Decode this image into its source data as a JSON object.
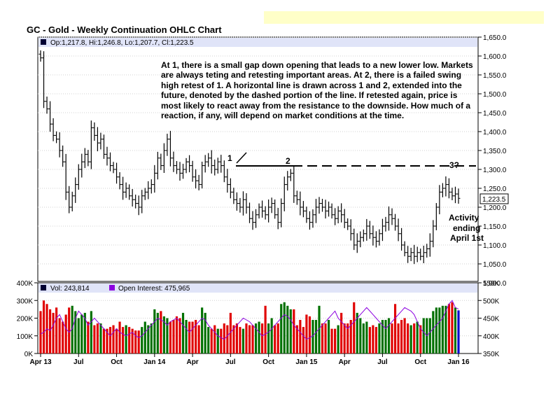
{
  "title": "GC - Gold - Weekly Continuation OHLC Chart",
  "ohlc_legend": "Op:1,217.8, Hi:1,246.8, Lo:1,207.7, Cl:1,223.5",
  "price_label": "1,223.5",
  "annotation": "At 1, there is a small gap down opening that leads to a new lower low.  Markets are always teting and retesting important areas.  At 2, there is a failed swing high retest of 1.  A horizontal line is drawn across 1 and 2, extended into the future, denoted by the dashed portion of the line.  If retested again, price is most likely to react away from the resistance to the downside.  How much of a reaction, if any, will depend on market conditions at the time.",
  "markers": {
    "m1": "1",
    "m2": "2",
    "m3": "3?"
  },
  "side_note": [
    "Activity",
    "ending",
    "April 1st"
  ],
  "volume_legend": "Vol: 243,814",
  "oi_legend": "Open Interest: 475,965",
  "colors": {
    "up": "#007000",
    "down": "#e00000",
    "oi": "#8c00e0",
    "legend_bg": "#e0e4f8",
    "note_bg": "#ffffc8",
    "last_volume": "#0000cc"
  },
  "chart_data": [
    {
      "type": "ohlc",
      "ylim": [
        1000,
        1650
      ],
      "price_ticks": [
        "1,650.0",
        "1,600.0",
        "1,550.0",
        "1,500.0",
        "1,450.0",
        "1,400.0",
        "1,350.0",
        "1,300.0",
        "1,250.0",
        "1,200.0",
        "1,150.0",
        "1,100.0",
        "1,050.0",
        "1,000.0"
      ],
      "x_ticks": [
        "Apr 13",
        "Jul",
        "Oct",
        "Jan 14",
        "Apr",
        "Jul",
        "Oct",
        "Jan 15",
        "Apr",
        "Jul",
        "Oct",
        "Jan 16"
      ],
      "resistance_level": 1310,
      "series": [
        {
          "name": "close",
          "values": [
            1595,
            1480,
            1460,
            1420,
            1390,
            1380,
            1350,
            1320,
            1240,
            1200,
            1230,
            1260,
            1300,
            1320,
            1340,
            1320,
            1410,
            1390,
            1370,
            1380,
            1340,
            1330,
            1310,
            1300,
            1280,
            1260,
            1240,
            1250,
            1230,
            1220,
            1210,
            1200,
            1230,
            1240,
            1250,
            1260,
            1290,
            1330,
            1310,
            1350,
            1380,
            1330,
            1310,
            1300,
            1290,
            1300,
            1320,
            1310,
            1280,
            1270,
            1260,
            1310,
            1320,
            1330,
            1310,
            1300,
            1320,
            1310,
            1280,
            1260,
            1240,
            1220,
            1210,
            1200,
            1220,
            1200,
            1170,
            1160,
            1180,
            1200,
            1190,
            1180,
            1200,
            1210,
            1180,
            1160,
            1210,
            1260,
            1280,
            1290,
            1230,
            1220,
            1200,
            1190,
            1170,
            1160,
            1180,
            1200,
            1210,
            1200,
            1190,
            1200,
            1180,
            1170,
            1190,
            1180,
            1160,
            1150,
            1130,
            1100,
            1110,
            1120,
            1130,
            1150,
            1130,
            1120,
            1110,
            1130,
            1150,
            1160,
            1180,
            1170,
            1150,
            1130,
            1100,
            1080,
            1070,
            1080,
            1070,
            1080,
            1070,
            1080,
            1090,
            1110,
            1150,
            1200,
            1240,
            1250,
            1260,
            1240,
            1230,
            1235,
            1223.5
          ]
        },
        {
          "name": "Vol",
          "values": [
            240,
            300,
            280,
            250,
            230,
            260,
            200,
            180,
            220,
            260,
            270,
            240,
            200,
            220,
            230,
            180,
            240,
            160,
            170,
            170,
            140,
            140,
            150,
            160,
            140,
            180,
            150,
            160,
            150,
            140,
            130,
            130,
            150,
            180,
            160,
            170,
            250,
            230,
            240,
            210,
            200,
            180,
            190,
            210,
            200,
            230,
            190,
            180,
            180,
            190,
            160,
            260,
            230,
            150,
            140,
            160,
            140,
            140,
            170,
            160,
            230,
            160,
            170,
            150,
            140,
            170,
            160,
            160,
            170,
            180,
            170,
            270,
            170,
            200,
            160,
            170,
            280,
            290,
            270,
            250,
            250,
            160,
            190,
            150,
            220,
            210,
            190,
            190,
            270,
            170,
            170,
            190,
            140,
            140,
            160,
            230,
            170,
            170,
            190,
            290,
            230,
            200,
            170,
            180,
            150,
            160,
            150,
            170,
            190,
            190,
            200,
            170,
            280,
            170,
            190,
            200,
            170,
            160,
            170,
            180,
            160,
            200,
            200,
            200,
            240,
            260,
            260,
            270,
            270,
            280,
            290,
            260,
            244
          ]
        },
        {
          "name": "Open Interest",
          "values": [
            405,
            410,
            420,
            415,
            430,
            450,
            460,
            440,
            420,
            410,
            420,
            450,
            470,
            460,
            450,
            430,
            440,
            450,
            440,
            430,
            420,
            410,
            400,
            410,
            420,
            410,
            405,
            400,
            405,
            410,
            400,
            395,
            400,
            410,
            420,
            430,
            440,
            450,
            445,
            440,
            430,
            440,
            445,
            450,
            440,
            430,
            420,
            410,
            420,
            430,
            440,
            450,
            445,
            430,
            420,
            410,
            400,
            395,
            390,
            400,
            410,
            420,
            430,
            440,
            450,
            445,
            440,
            430,
            420,
            410,
            400,
            405,
            410,
            420,
            430,
            440,
            450,
            460,
            455,
            445,
            430,
            420,
            410,
            400,
            390,
            395,
            400,
            410,
            420,
            430,
            440,
            450,
            460,
            470,
            450,
            440,
            430,
            420,
            430,
            440,
            450,
            460,
            470,
            480,
            470,
            460,
            450,
            440,
            430,
            420,
            430,
            440,
            450,
            460,
            470,
            480,
            475,
            470,
            460,
            440,
            420,
            410,
            400,
            410,
            420,
            430,
            440,
            450,
            470,
            490,
            500,
            480,
            476
          ]
        }
      ]
    },
    {
      "type": "bar",
      "volume_ticks": [
        "400K",
        "300K",
        "200K",
        "100K",
        "0K"
      ],
      "volume_ylim": [
        0,
        400
      ],
      "oi_ticks": [
        "550K",
        "500K",
        "450K",
        "400K",
        "350K"
      ],
      "oi_ylim": [
        350,
        550
      ]
    }
  ]
}
